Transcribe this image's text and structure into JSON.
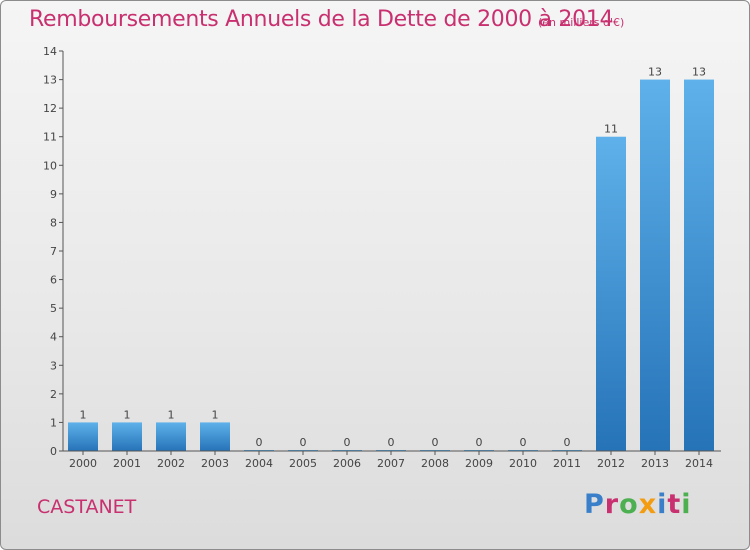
{
  "header": {
    "title": "Remboursements Annuels de la Dette de 2000 à 2014",
    "unit": "(en milliers d'€)"
  },
  "footer": {
    "city": "CASTANET",
    "logo_text": "Proxiti"
  },
  "colors": {
    "title": "#c8306f",
    "bar_top": "#5eb1ea",
    "bar_bottom": "#2673b8",
    "logo_letters": [
      "#3a7fc9",
      "#c8306f",
      "#4caf50",
      "#f39c12",
      "#3a7fc9",
      "#c8306f",
      "#4caf50"
    ]
  },
  "chart_data": {
    "type": "bar",
    "title": "Remboursements Annuels de la Dette de 2000 à 2014",
    "ylabel": "",
    "xlabel": "",
    "categories": [
      "2000",
      "2001",
      "2002",
      "2003",
      "2004",
      "2005",
      "2006",
      "2007",
      "2008",
      "2009",
      "2010",
      "2011",
      "2012",
      "2013",
      "2014"
    ],
    "values": [
      1,
      1,
      1,
      1,
      0,
      0,
      0,
      0,
      0,
      0,
      0,
      0,
      11,
      13,
      13
    ],
    "ylim": [
      0,
      14
    ],
    "yticks": [
      0,
      1,
      2,
      3,
      4,
      5,
      6,
      7,
      8,
      9,
      10,
      11,
      12,
      13,
      14
    ],
    "ytick_labels": [
      "0",
      "1",
      "2",
      "3",
      "4",
      "5",
      "6",
      "7",
      "8",
      "9",
      "10",
      "11",
      "12",
      "13",
      "14"
    ],
    "grid": false,
    "data_labels": true
  }
}
